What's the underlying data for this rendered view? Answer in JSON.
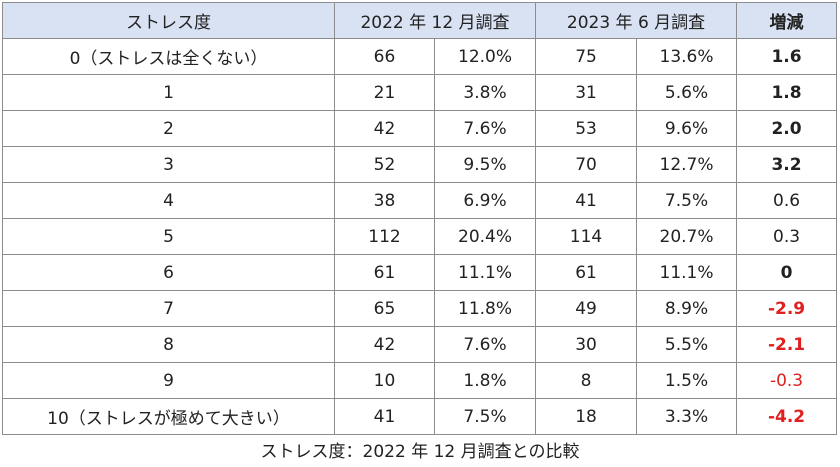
{
  "table": {
    "headers": {
      "stress_level": "ストレス度",
      "survey_2022": "2022 年 12 月調査",
      "survey_2023": "2023 年 6 月調査",
      "change": "増減"
    },
    "rows": [
      {
        "level": "0（ストレスは全くない）",
        "count_2022": "66",
        "pct_2022": "12.0%",
        "count_2023": "75",
        "pct_2023": "13.6%",
        "change": "1.6",
        "bold": true,
        "negative": false
      },
      {
        "level": "1",
        "count_2022": "21",
        "pct_2022": "3.8%",
        "count_2023": "31",
        "pct_2023": "5.6%",
        "change": "1.8",
        "bold": true,
        "negative": false
      },
      {
        "level": "2",
        "count_2022": "42",
        "pct_2022": "7.6%",
        "count_2023": "53",
        "pct_2023": "9.6%",
        "change": "2.0",
        "bold": true,
        "negative": false
      },
      {
        "level": "3",
        "count_2022": "52",
        "pct_2022": "9.5%",
        "count_2023": "70",
        "pct_2023": "12.7%",
        "change": "3.2",
        "bold": true,
        "negative": false
      },
      {
        "level": "4",
        "count_2022": "38",
        "pct_2022": "6.9%",
        "count_2023": "41",
        "pct_2023": "7.5%",
        "change": "0.6",
        "bold": false,
        "negative": false
      },
      {
        "level": "5",
        "count_2022": "112",
        "pct_2022": "20.4%",
        "count_2023": "114",
        "pct_2023": "20.7%",
        "change": "0.3",
        "bold": false,
        "negative": false
      },
      {
        "level": "6",
        "count_2022": "61",
        "pct_2022": "11.1%",
        "count_2023": "61",
        "pct_2023": "11.1%",
        "change": "0",
        "bold": true,
        "negative": false
      },
      {
        "level": "7",
        "count_2022": "65",
        "pct_2022": "11.8%",
        "count_2023": "49",
        "pct_2023": "8.9%",
        "change": "-2.9",
        "bold": true,
        "negative": true
      },
      {
        "level": "8",
        "count_2022": "42",
        "pct_2022": "7.6%",
        "count_2023": "30",
        "pct_2023": "5.5%",
        "change": "-2.1",
        "bold": true,
        "negative": true
      },
      {
        "level": "9",
        "count_2022": "10",
        "pct_2022": "1.8%",
        "count_2023": "8",
        "pct_2023": "1.5%",
        "change": "-0.3",
        "bold": false,
        "negative": true
      },
      {
        "level": "10（ストレスが極めて大きい）",
        "count_2022": "41",
        "pct_2022": "7.5%",
        "count_2023": "18",
        "pct_2023": "3.3%",
        "change": "-4.2",
        "bold": true,
        "negative": true
      }
    ]
  },
  "caption": "ストレス度：2022 年 12 月調査との比較",
  "colors": {
    "header_bg": "#d9e2f3",
    "border": "#8c8c8c",
    "negative_text": "#e02020",
    "text": "#222222"
  }
}
